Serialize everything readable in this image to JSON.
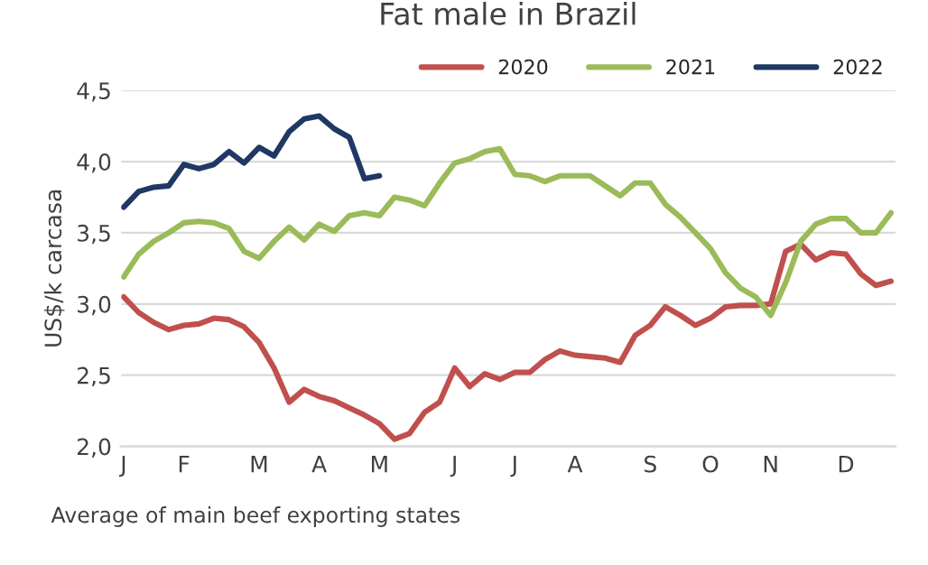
{
  "chart_data": {
    "type": "line",
    "title": "Fat male in Brazil",
    "ylabel": "US$/k carcasa",
    "annotations": [
      "Average of main beef exporting states"
    ],
    "categories": [
      "J",
      null,
      null,
      null,
      "F",
      null,
      null,
      null,
      null,
      "M",
      null,
      null,
      null,
      "A",
      null,
      null,
      null,
      "M",
      null,
      null,
      null,
      null,
      "J",
      null,
      null,
      null,
      "J",
      null,
      null,
      null,
      "A",
      null,
      null,
      null,
      null,
      "S",
      null,
      null,
      null,
      "O",
      null,
      null,
      null,
      "N",
      null,
      null,
      null,
      null,
      "D",
      null,
      null,
      null
    ],
    "series": [
      {
        "name": "2020",
        "color": "#c0504d",
        "values": [
          3.05,
          2.94,
          2.87,
          2.82,
          2.85,
          2.86,
          2.9,
          2.89,
          2.84,
          2.73,
          2.55,
          2.31,
          2.4,
          2.35,
          2.32,
          2.27,
          2.22,
          2.16,
          2.05,
          2.09,
          2.24,
          2.31,
          2.55,
          2.42,
          2.51,
          2.47,
          2.52,
          2.52,
          2.61,
          2.67,
          2.64,
          2.63,
          2.62,
          2.59,
          2.78,
          2.85,
          2.98,
          2.92,
          2.85,
          2.9,
          2.98,
          2.99,
          2.99,
          3.0,
          3.37,
          3.42,
          3.31,
          3.36,
          3.35,
          3.21,
          3.13,
          3.16
        ]
      },
      {
        "name": "2021",
        "color": "#9bbb59",
        "values": [
          3.19,
          3.35,
          3.44,
          3.5,
          3.57,
          3.58,
          3.57,
          3.53,
          3.37,
          3.32,
          3.44,
          3.54,
          3.45,
          3.56,
          3.51,
          3.62,
          3.64,
          3.62,
          3.75,
          3.73,
          3.69,
          3.85,
          3.99,
          4.02,
          4.07,
          4.09,
          3.91,
          3.9,
          3.86,
          3.9,
          3.9,
          3.9,
          3.83,
          3.76,
          3.85,
          3.85,
          3.7,
          3.61,
          3.5,
          3.39,
          3.22,
          3.11,
          3.05,
          2.92,
          3.15,
          3.44,
          3.56,
          3.6,
          3.6,
          3.5,
          3.5,
          3.64
        ]
      },
      {
        "name": "2022",
        "color": "#1f3864",
        "values": [
          3.68,
          3.79,
          3.82,
          3.83,
          3.98,
          3.95,
          3.98,
          4.07,
          3.99,
          4.1,
          4.04,
          4.21,
          4.3,
          4.32,
          4.23,
          4.17,
          3.88,
          3.9,
          null,
          null,
          null,
          null,
          null,
          null,
          null,
          null,
          null,
          null,
          null,
          null,
          null,
          null,
          null,
          null,
          null,
          null,
          null,
          null,
          null,
          null,
          null,
          null,
          null,
          null,
          null,
          null,
          null,
          null,
          null,
          null,
          null,
          null
        ]
      }
    ],
    "ylim": [
      2.0,
      4.5
    ],
    "yticks": [
      {
        "value": 2.0,
        "label": "2,0"
      },
      {
        "value": 2.5,
        "label": "2,5"
      },
      {
        "value": 3.0,
        "label": "3,0"
      },
      {
        "value": 3.5,
        "label": "3,5"
      },
      {
        "value": 4.0,
        "label": "4,0"
      },
      {
        "value": 4.5,
        "label": "4,5"
      }
    ],
    "grid": "y",
    "legend": "top right"
  }
}
